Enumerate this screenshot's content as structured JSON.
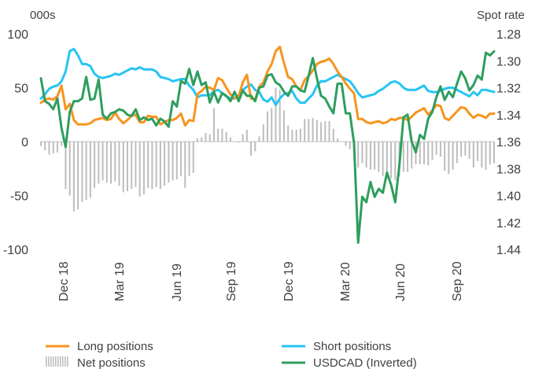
{
  "chart_data": {
    "type": "line",
    "left_axis_unit": "000s",
    "right_axis_unit": "Spot rate",
    "left_ylim": [
      -100,
      100
    ],
    "left_ticks": [
      "100",
      "50",
      "0",
      "-50",
      "-100"
    ],
    "right_ylim_inverted": [
      1.28,
      1.44
    ],
    "right_ticks": [
      "1.28",
      "1.30",
      "1.32",
      "1.34",
      "1.36",
      "1.38",
      "1.40",
      "1.42",
      "1.44"
    ],
    "x_tick_labels": [
      "Dec 18",
      "Mar 19",
      "Jun 19",
      "Sep 19",
      "Dec 19",
      "Mar 20",
      "Jun 20",
      "Sep 20"
    ],
    "grid": false,
    "legend_placement": "bottom",
    "series": [
      {
        "name": "Long positions",
        "axis": "left",
        "color": "#F7941D",
        "style": "line",
        "values": [
          36,
          39,
          40,
          39,
          42,
          52,
          30,
          35,
          20,
          16,
          16,
          16,
          17,
          20,
          21,
          22,
          20,
          21,
          27,
          21,
          17,
          20,
          24,
          25,
          18,
          18,
          24,
          23,
          23,
          16,
          18,
          20,
          20,
          22,
          26,
          15,
          20,
          19,
          44,
          47,
          51,
          50,
          48,
          59,
          57,
          50,
          44,
          40,
          42,
          55,
          62,
          40,
          39,
          51,
          55,
          65,
          72,
          84,
          88,
          73,
          60,
          58,
          51,
          48,
          57,
          61,
          66,
          72,
          74,
          75,
          77,
          72,
          65,
          60,
          54,
          49,
          45,
          21,
          21,
          18,
          17,
          18,
          19,
          17,
          18,
          21,
          20,
          22,
          22,
          20,
          23,
          27,
          29,
          31,
          25,
          29,
          34,
          33,
          22,
          20,
          24,
          28,
          32,
          31,
          26,
          22,
          25,
          24,
          22,
          26,
          26
        ]
      },
      {
        "name": "Short positions",
        "axis": "left",
        "color": "#27C4F4",
        "style": "line",
        "values": [
          40,
          44,
          49,
          51,
          52,
          56,
          65,
          84,
          86,
          80,
          72,
          72,
          70,
          63,
          60,
          59,
          60,
          61,
          63,
          62,
          64,
          66,
          68,
          67,
          69,
          67,
          67,
          67,
          65,
          60,
          59,
          58,
          56,
          57,
          58,
          58,
          52,
          48,
          41,
          43,
          43,
          43,
          47,
          48,
          45,
          42,
          40,
          40,
          43,
          48,
          51,
          53,
          48,
          46,
          39,
          37,
          41,
          34,
          40,
          44,
          45,
          47,
          40,
          36,
          36,
          40,
          44,
          52,
          56,
          56,
          58,
          60,
          62,
          60,
          58,
          56,
          51,
          45,
          41,
          42,
          43,
          44,
          47,
          49,
          52,
          55,
          56,
          54,
          50,
          48,
          48,
          48,
          50,
          52,
          47,
          46,
          46,
          47,
          49,
          50,
          50,
          48,
          46,
          44,
          42,
          46,
          43,
          48,
          48,
          47,
          46
        ]
      },
      {
        "name": "Net positions",
        "axis": "left",
        "color": "#BDBDBD",
        "style": "bar",
        "values": [
          -4,
          -8,
          -12,
          -11,
          -10,
          -4,
          -44,
          -50,
          -65,
          -63,
          -56,
          -54,
          -52,
          -43,
          -39,
          -36,
          -38,
          -39,
          -37,
          -41,
          -47,
          -46,
          -44,
          -42,
          -51,
          -49,
          -43,
          -44,
          -42,
          -44,
          -41,
          -38,
          -36,
          -35,
          -32,
          -43,
          -32,
          -29,
          3,
          4,
          8,
          7,
          31,
          12,
          12,
          9,
          4,
          0,
          -1,
          7,
          11,
          -13,
          -9,
          5,
          16,
          28,
          31,
          50,
          48,
          29,
          15,
          11,
          11,
          12,
          21,
          21,
          22,
          20,
          18,
          19,
          19,
          12,
          3,
          0,
          -4,
          -7,
          -6,
          -24,
          -20,
          -24,
          -26,
          -26,
          -28,
          -32,
          -34,
          -34,
          -36,
          -32,
          -28,
          -28,
          -25,
          -21,
          -21,
          -21,
          -22,
          -17,
          -12,
          -14,
          -27,
          -30,
          -26,
          -20,
          -14,
          -13,
          -16,
          -24,
          -18,
          -24,
          -26,
          -21,
          -20
        ]
      },
      {
        "name": "USDCAD (Inverted)",
        "axis": "right",
        "color": "#2E9E5E",
        "style": "line",
        "values": [
          1.313,
          1.33,
          1.332,
          1.336,
          1.328,
          1.35,
          1.364,
          1.338,
          1.33,
          1.33,
          1.328,
          1.312,
          1.329,
          1.328,
          1.314,
          1.34,
          1.343,
          1.339,
          1.338,
          1.336,
          1.337,
          1.34,
          1.341,
          1.336,
          1.344,
          1.342,
          1.344,
          1.343,
          1.348,
          1.343,
          1.345,
          1.349,
          1.33,
          1.334,
          1.315,
          1.317,
          1.306,
          1.318,
          1.308,
          1.318,
          1.316,
          1.331,
          1.323,
          1.331,
          1.324,
          1.326,
          1.33,
          1.323,
          1.33,
          1.322,
          1.326,
          1.326,
          1.33,
          1.32,
          1.319,
          1.311,
          1.31,
          1.316,
          1.318,
          1.323,
          1.326,
          1.319,
          1.319,
          1.322,
          1.323,
          1.311,
          1.298,
          1.313,
          1.326,
          1.328,
          1.334,
          1.339,
          1.317,
          1.317,
          1.339,
          1.339,
          1.361,
          1.435,
          1.401,
          1.405,
          1.39,
          1.401,
          1.395,
          1.398,
          1.383,
          1.392,
          1.405,
          1.378,
          1.342,
          1.34,
          1.36,
          1.368,
          1.355,
          1.358,
          1.343,
          1.338,
          1.327,
          1.319,
          1.329,
          1.323,
          1.327,
          1.317,
          1.308,
          1.313,
          1.322,
          1.318,
          1.311,
          1.314,
          1.294,
          1.296,
          1.293
        ]
      }
    ]
  }
}
